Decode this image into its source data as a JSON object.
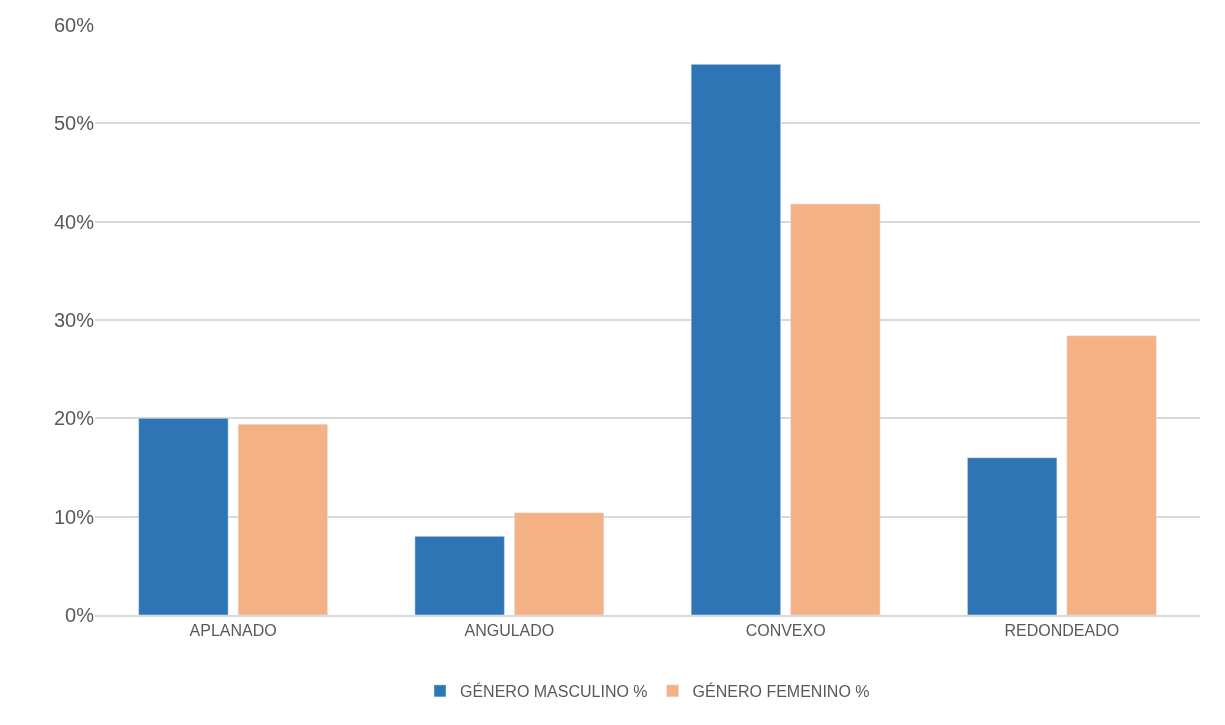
{
  "chart_data": {
    "type": "bar",
    "categories": [
      "APLANADO",
      "ANGULADO",
      "CONVEXO",
      "REDONDEADO"
    ],
    "series": [
      {
        "name": "GÉNERO MASCULINO %",
        "color": "#2e75b6",
        "values": [
          20.0,
          8.0,
          56.0,
          16.0
        ]
      },
      {
        "name": "GÉNERO FEMENINO %",
        "color": "#f4b183",
        "values": [
          19.4,
          10.4,
          41.8,
          28.4
        ]
      }
    ],
    "ylim": [
      0,
      60
    ],
    "yticks": [
      {
        "value": 0,
        "label": "0%"
      },
      {
        "value": 10,
        "label": "10%"
      },
      {
        "value": 20,
        "label": "20%"
      },
      {
        "value": 30,
        "label": "30%"
      },
      {
        "value": 40,
        "label": "40%"
      },
      {
        "value": 50,
        "label": "50%"
      },
      {
        "value": 60,
        "label": "60%"
      }
    ],
    "grid": "y",
    "legend": "bottom"
  }
}
